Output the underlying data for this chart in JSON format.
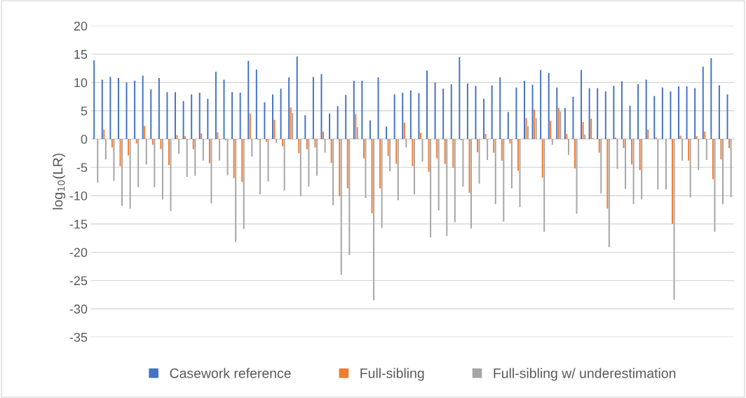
{
  "chart_data": {
    "type": "bar",
    "ylabel": "log$_{10}$(LR)",
    "categories": [
      null,
      null,
      null,
      null,
      null,
      null,
      null,
      null,
      null,
      null,
      null,
      null,
      null,
      null,
      null,
      null,
      null,
      null,
      null,
      null,
      null,
      null,
      null,
      null,
      null,
      null,
      null,
      null,
      null,
      null,
      null,
      null,
      null,
      null,
      null,
      null,
      null,
      null,
      null,
      null,
      null,
      null,
      null,
      null,
      null,
      null,
      null,
      null,
      null,
      null,
      null,
      null,
      null,
      null,
      null,
      null,
      null,
      null,
      null,
      null,
      null,
      null,
      null,
      null,
      null,
      null,
      null,
      null,
      null,
      null,
      null,
      null,
      null,
      null,
      null,
      null,
      null,
      null,
      null
    ],
    "series": [
      {
        "name": "Casework reference",
        "color": "#4472c4",
        "values": [
          13.9,
          10.5,
          11.0,
          10.8,
          10.0,
          10.3,
          11.2,
          8.8,
          10.8,
          8.3,
          8.3,
          6.7,
          7.9,
          8.2,
          7.1,
          11.9,
          10.5,
          8.3,
          8.2,
          13.8,
          12.3,
          6.5,
          7.9,
          8.9,
          10.9,
          14.6,
          4.2,
          11.0,
          11.5,
          4.5,
          5.8,
          7.8,
          10.3,
          10.3,
          3.3,
          10.9,
          2.2,
          7.9,
          8.2,
          8.6,
          8.1,
          12.1,
          10.0,
          8.9,
          9.7,
          14.5,
          9.8,
          9.4,
          7.1,
          9.5,
          10.9,
          4.8,
          9.1,
          10.3,
          9.6,
          12.2,
          11.7,
          9.1,
          5.5,
          7.5,
          12.2,
          9.0,
          9.0,
          8.4,
          9.4,
          10.2,
          5.9,
          9.7,
          10.5,
          7.6,
          9.1,
          8.4,
          9.3,
          9.3,
          9.0,
          12.8,
          14.3,
          9.5,
          7.9
        ]
      },
      {
        "name": "Full-sibling",
        "color": "#ed7d31",
        "values": [
          0,
          1.7,
          -1.5,
          -4.8,
          -2.9,
          -0.8,
          2.3,
          -1.0,
          -1.8,
          -4.6,
          0.7,
          0.5,
          -1.8,
          1.0,
          -4.3,
          1.2,
          -0.2,
          -6.9,
          -7.6,
          4.5,
          -0.1,
          -0.5,
          3.4,
          -1.3,
          5.6,
          -2.5,
          -1.8,
          -1.5,
          1.3,
          -4.2,
          -10.1,
          -8.7,
          4.4,
          -3.4,
          -13.1,
          -8.7,
          -3.0,
          -4.4,
          2.9,
          -4.8,
          1.1,
          -5.8,
          -3.4,
          -4.4,
          -5.1,
          -0.2,
          -9.5,
          -2.3,
          0.9,
          -2.4,
          -3.8,
          -0.8,
          -5.6,
          3.7,
          5.2,
          -6.8,
          3.2,
          5.5,
          0.9,
          -5.2,
          3.0,
          3.6,
          -2.4,
          -12.3,
          0.3,
          -1.6,
          -4.5,
          -5.5,
          1.7,
          0.3,
          0,
          -15.0,
          0.6,
          -3.8,
          0.5,
          1.3,
          -7.1,
          -3.6,
          -1.6
        ]
      },
      {
        "name": "Full-sibling w/ underestimation",
        "color": "#a5a5a5",
        "values": [
          -7.7,
          -3.6,
          -7.4,
          -11.8,
          -12.3,
          -8.5,
          -4.5,
          -8.5,
          -10.7,
          -12.7,
          -2.6,
          -6.7,
          -6.5,
          -3.8,
          -11.4,
          -3.8,
          -6.4,
          -18.2,
          -15.9,
          -3.1,
          -9.8,
          -7.5,
          -0.7,
          -9.1,
          4.6,
          -10.1,
          -8.4,
          -6.5,
          -2.4,
          -11.7,
          -24.0,
          -20.5,
          2.1,
          -10.4,
          -28.5,
          -15.7,
          -5.7,
          -10.8,
          -1.5,
          -9.8,
          -4.0,
          -17.4,
          -12.6,
          -17.1,
          -14.7,
          -8.4,
          -15.8,
          -7.9,
          -3.7,
          -11.5,
          -14.6,
          -8.7,
          -12.0,
          2.3,
          3.7,
          -16.4,
          -1.0,
          4.9,
          -2.8,
          -13.2,
          0.8,
          0.2,
          -9.6,
          -19.1,
          -5.3,
          -8.8,
          -11.5,
          -10.7,
          0,
          -8.9,
          -8.9,
          -28.4,
          -3.8,
          -10.3,
          -5.5,
          -3.7,
          -16.4,
          -11.5,
          -10.3
        ]
      }
    ],
    "ylim": [
      -35,
      20
    ],
    "yticks": [
      -35,
      -30,
      -25,
      -20,
      -15,
      -10,
      -5,
      0,
      5,
      10,
      15,
      20
    ],
    "grid": "y",
    "legend": "bottom",
    "tick_labels": "y"
  }
}
